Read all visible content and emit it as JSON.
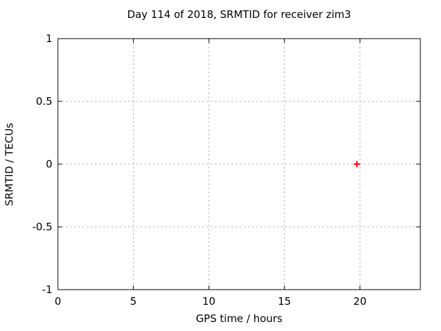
{
  "chart_data": {
    "type": "scatter",
    "title": "Day 114 of 2018, SRMTID for receiver zim3",
    "xlabel": "GPS time / hours",
    "ylabel": "SRMTID / TECUs",
    "xlim": [
      0,
      24
    ],
    "ylim": [
      -1,
      1
    ],
    "xticks": [
      0,
      5,
      10,
      15,
      20
    ],
    "yticks": [
      -1,
      -0.5,
      0,
      0.5,
      1
    ],
    "grid": true,
    "legend": "none",
    "colors": {
      "text": "#000000",
      "border": "#000000",
      "grid": "#a0a0a0",
      "background": "#ffffff"
    },
    "series": [
      {
        "name": "SRMTID",
        "marker": "plus",
        "color": "#ff0000",
        "points": [
          {
            "x": 19.8,
            "y": 0.0
          }
        ]
      }
    ]
  }
}
